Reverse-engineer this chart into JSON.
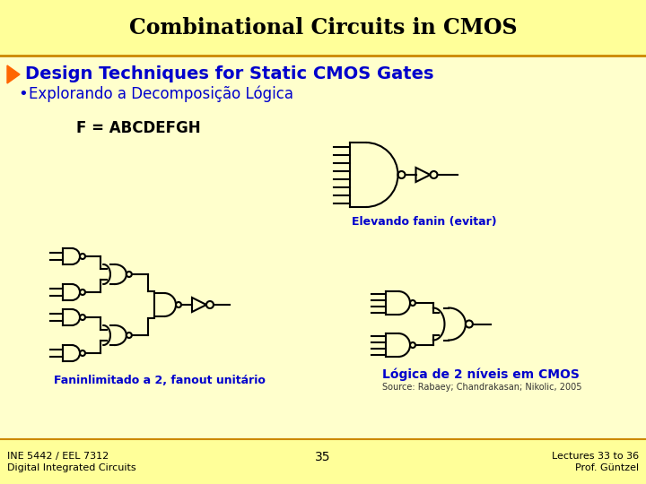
{
  "title": "Combinational Circuits in CMOS",
  "title_bg": "#FFFF99",
  "slide_bg": "#FFFFCC",
  "section_text": "Design Techniques for Static CMOS Gates",
  "bullet_text": "Explorando a Decomposição Lógica",
  "section_color": "#0000CC",
  "bullet_color": "#0000CC",
  "arrow_color": "#FF6600",
  "formula_text": "F = ABCDEFGH",
  "formula_color": "#000000",
  "label1": "Elevando fanin (evitar)",
  "label2": "Faninlimitado a 2, fanout unitário",
  "label3": "Lógica de 2 níveis em CMOS",
  "label_color": "#0000CC",
  "source_text": "Source: Rabaey; Chandrakasan; Nikolic, 2005",
  "footer_left1": "INE 5442 / EEL 7312",
  "footer_left2": "Digital Integrated Circuits",
  "footer_center": "35",
  "footer_right1": "Lectures 33 to 36",
  "footer_right2": "Prof. Güntzel",
  "footer_color": "#000000",
  "gate_color": "#000000",
  "line_width": 1.5
}
